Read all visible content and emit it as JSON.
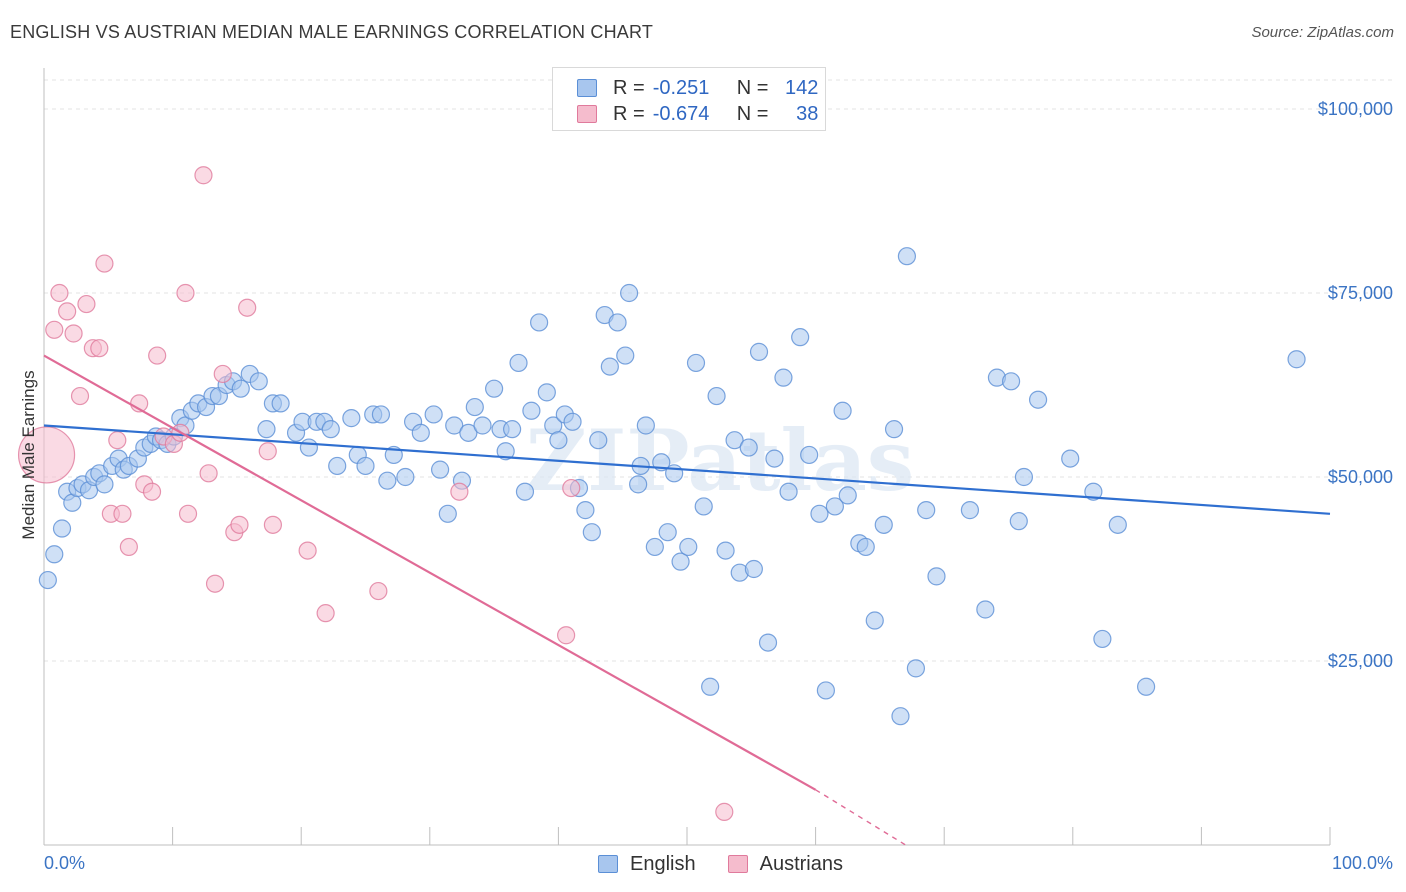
{
  "header": {
    "title": "ENGLISH VS AUSTRIAN MEDIAN MALE EARNINGS CORRELATION CHART",
    "source": "Source: ZipAtlas.com"
  },
  "legend_top": {
    "rows": [
      {
        "r_label": "R =",
        "r_value": "-0.251",
        "n_label": "N =",
        "n_value": "142",
        "color": "#a8c6ee",
        "border": "#5b8fd6"
      },
      {
        "r_label": "R =",
        "r_value": "-0.674",
        "n_label": "N =",
        "n_value": "38",
        "color": "#f5bccd",
        "border": "#e07a9c"
      }
    ]
  },
  "legend_bottom": [
    {
      "label": "English",
      "color": "#a8c6ee",
      "border": "#5b8fd6"
    },
    {
      "label": "Austrians",
      "color": "#f5bccd",
      "border": "#e07a9c"
    }
  ],
  "chart_data": {
    "type": "scatter",
    "ylabel": "Median Male Earnings",
    "xlabel": "",
    "x_tick_labels": [
      "0.0%",
      "100.0%"
    ],
    "y_tick_labels": [
      "$25,000",
      "$50,000",
      "$75,000",
      "$100,000"
    ],
    "y_ticks": [
      25000,
      50000,
      75000,
      100000
    ],
    "xlim": [
      0,
      100
    ],
    "ylim": [
      0,
      100000
    ],
    "grid": true,
    "watermark": "ZIPatlas",
    "series": [
      {
        "name": "English",
        "color": "#a8c6ee",
        "stroke": "#5b8fd6",
        "trend": {
          "x": [
            0,
            100
          ],
          "y": [
            57000,
            45000
          ],
          "color": "#2f6fd0"
        },
        "points": [
          [
            0.3,
            36000
          ],
          [
            0.8,
            39500
          ],
          [
            1.4,
            43000
          ],
          [
            1.8,
            48000
          ],
          [
            2.2,
            46500
          ],
          [
            2.6,
            48500
          ],
          [
            3.0,
            49000
          ],
          [
            3.5,
            48200
          ],
          [
            3.9,
            50000
          ],
          [
            4.3,
            50500
          ],
          [
            4.7,
            49000
          ],
          [
            5.3,
            51500
          ],
          [
            5.8,
            52500
          ],
          [
            6.2,
            51000
          ],
          [
            6.6,
            51500
          ],
          [
            7.3,
            52500
          ],
          [
            7.8,
            54000
          ],
          [
            8.3,
            54500
          ],
          [
            8.7,
            55500
          ],
          [
            9.1,
            55000
          ],
          [
            9.6,
            54500
          ],
          [
            10.1,
            55500
          ],
          [
            10.6,
            58000
          ],
          [
            11.0,
            57000
          ],
          [
            11.5,
            59000
          ],
          [
            12.0,
            60000
          ],
          [
            12.6,
            59500
          ],
          [
            13.1,
            61000
          ],
          [
            13.6,
            61000
          ],
          [
            14.2,
            62500
          ],
          [
            14.7,
            63000
          ],
          [
            15.3,
            62000
          ],
          [
            16.0,
            64000
          ],
          [
            16.7,
            63000
          ],
          [
            17.3,
            56500
          ],
          [
            17.8,
            60000
          ],
          [
            18.4,
            60000
          ],
          [
            19.6,
            56000
          ],
          [
            20.1,
            57500
          ],
          [
            20.6,
            54000
          ],
          [
            21.2,
            57500
          ],
          [
            21.8,
            57500
          ],
          [
            22.3,
            56500
          ],
          [
            22.8,
            51500
          ],
          [
            23.9,
            58000
          ],
          [
            24.4,
            53000
          ],
          [
            25.0,
            51500
          ],
          [
            25.6,
            58500
          ],
          [
            26.2,
            58500
          ],
          [
            26.7,
            49500
          ],
          [
            27.2,
            53000
          ],
          [
            28.1,
            50000
          ],
          [
            28.7,
            57500
          ],
          [
            29.3,
            56000
          ],
          [
            30.3,
            58500
          ],
          [
            30.8,
            51000
          ],
          [
            31.4,
            45000
          ],
          [
            31.9,
            57000
          ],
          [
            32.5,
            49500
          ],
          [
            33.0,
            56000
          ],
          [
            33.5,
            59500
          ],
          [
            34.1,
            57000
          ],
          [
            35.0,
            62000
          ],
          [
            35.5,
            56500
          ],
          [
            35.9,
            53500
          ],
          [
            36.4,
            56500
          ],
          [
            36.9,
            65500
          ],
          [
            37.4,
            48000
          ],
          [
            37.9,
            59000
          ],
          [
            38.5,
            71000
          ],
          [
            39.1,
            61500
          ],
          [
            39.6,
            57000
          ],
          [
            40.0,
            55000
          ],
          [
            40.5,
            58500
          ],
          [
            41.1,
            57500
          ],
          [
            41.6,
            48500
          ],
          [
            42.1,
            45500
          ],
          [
            42.6,
            42500
          ],
          [
            43.1,
            55000
          ],
          [
            43.6,
            72000
          ],
          [
            44.0,
            65000
          ],
          [
            44.6,
            71000
          ],
          [
            45.2,
            66500
          ],
          [
            45.5,
            75000
          ],
          [
            46.2,
            49000
          ],
          [
            46.4,
            51500
          ],
          [
            46.8,
            57000
          ],
          [
            47.5,
            40500
          ],
          [
            48.0,
            52000
          ],
          [
            48.5,
            42500
          ],
          [
            49.0,
            50500
          ],
          [
            49.5,
            38500
          ],
          [
            50.1,
            40500
          ],
          [
            50.7,
            65500
          ],
          [
            51.3,
            46000
          ],
          [
            51.8,
            21500
          ],
          [
            52.3,
            61000
          ],
          [
            53.0,
            40000
          ],
          [
            53.7,
            55000
          ],
          [
            54.1,
            37000
          ],
          [
            54.8,
            54000
          ],
          [
            55.2,
            37500
          ],
          [
            55.6,
            67000
          ],
          [
            56.3,
            27500
          ],
          [
            56.8,
            52500
          ],
          [
            57.5,
            63500
          ],
          [
            57.9,
            48000
          ],
          [
            58.8,
            69000
          ],
          [
            59.5,
            53000
          ],
          [
            60.3,
            45000
          ],
          [
            60.8,
            21000
          ],
          [
            61.5,
            46000
          ],
          [
            62.1,
            59000
          ],
          [
            62.5,
            47500
          ],
          [
            63.4,
            41000
          ],
          [
            63.9,
            40500
          ],
          [
            64.6,
            30500
          ],
          [
            65.3,
            43500
          ],
          [
            66.1,
            56500
          ],
          [
            66.6,
            17500
          ],
          [
            67.1,
            80000
          ],
          [
            67.8,
            24000
          ],
          [
            68.6,
            45500
          ],
          [
            69.4,
            36500
          ],
          [
            72.0,
            45500
          ],
          [
            73.2,
            32000
          ],
          [
            74.1,
            63500
          ],
          [
            75.2,
            63000
          ],
          [
            75.8,
            44000
          ],
          [
            76.2,
            50000
          ],
          [
            77.3,
            60500
          ],
          [
            79.8,
            52500
          ],
          [
            81.6,
            48000
          ],
          [
            82.3,
            28000
          ],
          [
            83.5,
            43500
          ],
          [
            85.7,
            21500
          ],
          [
            97.4,
            66000
          ]
        ]
      },
      {
        "name": "Austrians",
        "color": "#f5bccd",
        "stroke": "#e07a9c",
        "trend": {
          "x": [
            0,
            60
          ],
          "y": [
            66500,
            7500
          ],
          "color": "#e06b96",
          "dash_to": [
            67.0,
            0
          ]
        },
        "points": [
          [
            0.2,
            53000,
            "big"
          ],
          [
            0.8,
            70000
          ],
          [
            1.2,
            75000
          ],
          [
            1.8,
            72500
          ],
          [
            2.3,
            69500
          ],
          [
            2.8,
            61000
          ],
          [
            3.3,
            73500
          ],
          [
            3.8,
            67500
          ],
          [
            4.3,
            67500
          ],
          [
            4.7,
            79000
          ],
          [
            5.2,
            45000
          ],
          [
            5.7,
            55000
          ],
          [
            6.1,
            45000
          ],
          [
            6.6,
            40500
          ],
          [
            7.4,
            60000
          ],
          [
            7.8,
            49000
          ],
          [
            8.4,
            48000
          ],
          [
            8.8,
            66500
          ],
          [
            9.3,
            55500
          ],
          [
            10.1,
            54500
          ],
          [
            10.6,
            56000
          ],
          [
            11.0,
            75000
          ],
          [
            11.2,
            45000
          ],
          [
            12.4,
            91000
          ],
          [
            12.8,
            50500
          ],
          [
            13.3,
            35500
          ],
          [
            13.9,
            64000
          ],
          [
            14.8,
            42500
          ],
          [
            15.2,
            43500
          ],
          [
            15.8,
            73000
          ],
          [
            17.4,
            53500
          ],
          [
            17.8,
            43500
          ],
          [
            20.5,
            40000
          ],
          [
            21.9,
            31500
          ],
          [
            26.0,
            34500
          ],
          [
            32.3,
            48000
          ],
          [
            40.6,
            28500
          ],
          [
            41.0,
            48500
          ],
          [
            52.9,
            4500
          ]
        ]
      }
    ]
  }
}
